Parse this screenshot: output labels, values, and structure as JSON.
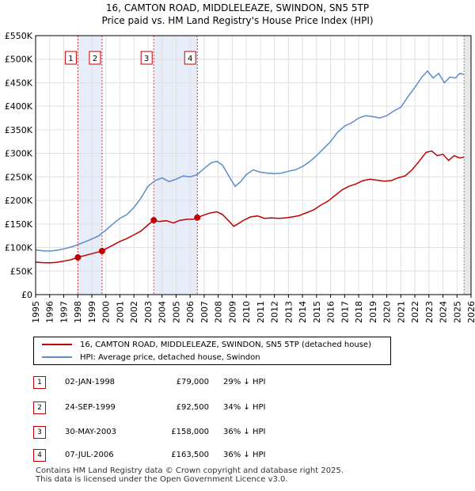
{
  "title_line1": "16, CAMTON ROAD, MIDDLELEAZE, SWINDON, SN5 5TP",
  "title_line2": "Price paid vs. HM Land Registry's House Price Index (HPI)",
  "chart_data": {
    "type": "line",
    "title": "16, CAMTON ROAD, MIDDLELEAZE, SWINDON, SN5 5TP — Price paid vs. HM Land Registry's House Price Index (HPI)",
    "xlim": [
      1995,
      2026
    ],
    "ylim": [
      0,
      550000
    ],
    "x_ticks": [
      "1995",
      "1996",
      "1997",
      "1998",
      "1999",
      "2000",
      "2001",
      "2002",
      "2003",
      "2004",
      "2005",
      "2006",
      "2007",
      "2008",
      "2009",
      "2010",
      "2011",
      "2012",
      "2013",
      "2014",
      "2015",
      "2016",
      "2017",
      "2018",
      "2019",
      "2020",
      "2021",
      "2022",
      "2023",
      "2024",
      "2025",
      "2026"
    ],
    "y_ticks": [
      {
        "value": 0,
        "label": "£0"
      },
      {
        "value": 50000,
        "label": "£50K"
      },
      {
        "value": 100000,
        "label": "£100K"
      },
      {
        "value": 150000,
        "label": "£150K"
      },
      {
        "value": 200000,
        "label": "£200K"
      },
      {
        "value": 250000,
        "label": "£250K"
      },
      {
        "value": 300000,
        "label": "£300K"
      },
      {
        "value": 350000,
        "label": "£350K"
      },
      {
        "value": 400000,
        "label": "£400K"
      },
      {
        "value": 450000,
        "label": "£450K"
      },
      {
        "value": 500000,
        "label": "£500K"
      },
      {
        "value": 550000,
        "label": "£550K"
      }
    ],
    "grid": true,
    "series": [
      {
        "name": "16, CAMTON ROAD, MIDDLELEAZE, SWINDON, SN5 5TP (detached house)",
        "color": "#c00000",
        "points": [
          [
            1995.0,
            69000
          ],
          [
            1995.5,
            68000
          ],
          [
            1996.0,
            67500
          ],
          [
            1996.5,
            68500
          ],
          [
            1997.0,
            71000
          ],
          [
            1997.5,
            74000
          ],
          [
            1998.0,
            79000
          ],
          [
            1998.5,
            83000
          ],
          [
            1999.0,
            87000
          ],
          [
            1999.73,
            92500
          ],
          [
            2000.0,
            97000
          ],
          [
            2000.5,
            105000
          ],
          [
            2001.0,
            113000
          ],
          [
            2001.5,
            119000
          ],
          [
            2002.0,
            127000
          ],
          [
            2002.5,
            135000
          ],
          [
            2003.0,
            148000
          ],
          [
            2003.41,
            158000
          ],
          [
            2003.8,
            155000
          ],
          [
            2004.3,
            157000
          ],
          [
            2004.8,
            152000
          ],
          [
            2005.3,
            158000
          ],
          [
            2005.8,
            160000
          ],
          [
            2006.2,
            160000
          ],
          [
            2006.51,
            163500
          ],
          [
            2006.9,
            168000
          ],
          [
            2007.4,
            173000
          ],
          [
            2007.9,
            176000
          ],
          [
            2008.3,
            170000
          ],
          [
            2008.8,
            155000
          ],
          [
            2009.1,
            145000
          ],
          [
            2009.4,
            150000
          ],
          [
            2009.8,
            158000
          ],
          [
            2010.3,
            165000
          ],
          [
            2010.8,
            167000
          ],
          [
            2011.3,
            162000
          ],
          [
            2011.8,
            163000
          ],
          [
            2012.3,
            162000
          ],
          [
            2012.8,
            163000
          ],
          [
            2013.3,
            165000
          ],
          [
            2013.8,
            168000
          ],
          [
            2014.3,
            174000
          ],
          [
            2014.8,
            180000
          ],
          [
            2015.3,
            190000
          ],
          [
            2015.8,
            198000
          ],
          [
            2016.3,
            210000
          ],
          [
            2016.8,
            222000
          ],
          [
            2017.3,
            230000
          ],
          [
            2017.8,
            235000
          ],
          [
            2018.3,
            242000
          ],
          [
            2018.8,
            245000
          ],
          [
            2019.3,
            243000
          ],
          [
            2019.8,
            241000
          ],
          [
            2020.3,
            242000
          ],
          [
            2020.8,
            248000
          ],
          [
            2021.3,
            252000
          ],
          [
            2021.8,
            265000
          ],
          [
            2022.3,
            283000
          ],
          [
            2022.8,
            302000
          ],
          [
            2023.2,
            305000
          ],
          [
            2023.6,
            295000
          ],
          [
            2024.0,
            298000
          ],
          [
            2024.4,
            285000
          ],
          [
            2024.8,
            295000
          ],
          [
            2025.2,
            290000
          ],
          [
            2025.5,
            292000
          ]
        ]
      },
      {
        "name": "HPI: Average price, detached house, Swindon",
        "color": "#5b8cc8",
        "points": [
          [
            1995.0,
            95000
          ],
          [
            1995.5,
            93000
          ],
          [
            1996.0,
            92500
          ],
          [
            1996.5,
            94000
          ],
          [
            1997.0,
            97000
          ],
          [
            1997.5,
            101000
          ],
          [
            1998.0,
            106000
          ],
          [
            1998.5,
            112000
          ],
          [
            1999.0,
            118000
          ],
          [
            1999.5,
            125000
          ],
          [
            2000.0,
            137000
          ],
          [
            2000.5,
            150000
          ],
          [
            2001.0,
            162000
          ],
          [
            2001.5,
            170000
          ],
          [
            2002.0,
            185000
          ],
          [
            2002.5,
            205000
          ],
          [
            2003.0,
            230000
          ],
          [
            2003.5,
            242000
          ],
          [
            2004.0,
            248000
          ],
          [
            2004.5,
            240000
          ],
          [
            2005.0,
            245000
          ],
          [
            2005.5,
            252000
          ],
          [
            2006.0,
            250000
          ],
          [
            2006.5,
            255000
          ],
          [
            2007.0,
            268000
          ],
          [
            2007.5,
            280000
          ],
          [
            2007.9,
            283000
          ],
          [
            2008.3,
            275000
          ],
          [
            2008.8,
            250000
          ],
          [
            2009.2,
            230000
          ],
          [
            2009.6,
            240000
          ],
          [
            2010.0,
            255000
          ],
          [
            2010.5,
            265000
          ],
          [
            2011.0,
            260000
          ],
          [
            2011.5,
            258000
          ],
          [
            2012.0,
            257000
          ],
          [
            2012.5,
            258000
          ],
          [
            2013.0,
            262000
          ],
          [
            2013.5,
            265000
          ],
          [
            2014.0,
            272000
          ],
          [
            2014.5,
            282000
          ],
          [
            2015.0,
            295000
          ],
          [
            2015.5,
            310000
          ],
          [
            2016.0,
            325000
          ],
          [
            2016.5,
            345000
          ],
          [
            2017.0,
            358000
          ],
          [
            2017.5,
            365000
          ],
          [
            2018.0,
            375000
          ],
          [
            2018.5,
            380000
          ],
          [
            2019.0,
            378000
          ],
          [
            2019.5,
            375000
          ],
          [
            2020.0,
            380000
          ],
          [
            2020.5,
            390000
          ],
          [
            2021.0,
            398000
          ],
          [
            2021.5,
            420000
          ],
          [
            2022.0,
            440000
          ],
          [
            2022.5,
            462000
          ],
          [
            2022.9,
            475000
          ],
          [
            2023.3,
            460000
          ],
          [
            2023.7,
            470000
          ],
          [
            2024.1,
            450000
          ],
          [
            2024.5,
            462000
          ],
          [
            2024.9,
            460000
          ],
          [
            2025.2,
            470000
          ],
          [
            2025.5,
            468000
          ]
        ]
      }
    ],
    "transactions": [
      {
        "n": "1",
        "x": 1998.01,
        "y": 79000
      },
      {
        "n": "2",
        "x": 1999.73,
        "y": 92500
      },
      {
        "n": "3",
        "x": 2003.41,
        "y": 158000
      },
      {
        "n": "4",
        "x": 2006.51,
        "y": 163500
      }
    ],
    "shaded_ranges": [
      [
        1998.01,
        1999.73
      ],
      [
        2003.41,
        2006.51
      ]
    ],
    "forecast_start": 2025.5
  },
  "legend": {
    "property_label": "16, CAMTON ROAD, MIDDLELEAZE, SWINDON, SN5 5TP (detached house)",
    "hpi_label": "HPI: Average price, detached house, Swindon"
  },
  "transactions_table": [
    {
      "n": "1",
      "date": "02-JAN-1998",
      "price": "£79,000",
      "hpi": "29% ↓ HPI"
    },
    {
      "n": "2",
      "date": "24-SEP-1999",
      "price": "£92,500",
      "hpi": "34% ↓ HPI"
    },
    {
      "n": "3",
      "date": "30-MAY-2003",
      "price": "£158,000",
      "hpi": "36% ↓ HPI"
    },
    {
      "n": "4",
      "date": "07-JUL-2006",
      "price": "£163,500",
      "hpi": "36% ↓ HPI"
    }
  ],
  "footer_line1": "Contains HM Land Registry data © Crown copyright and database right 2025.",
  "footer_line2": "This data is licensed under the Open Government Licence v3.0."
}
